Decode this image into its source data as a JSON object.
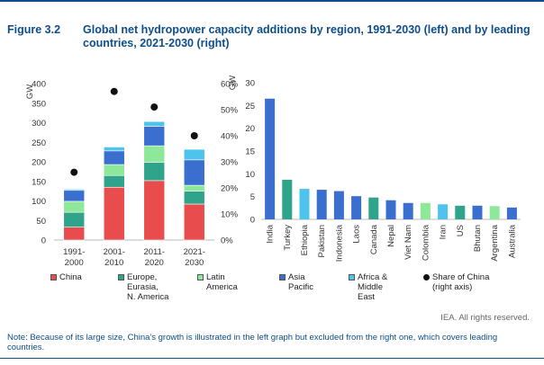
{
  "figure": {
    "number": "Figure 3.2",
    "title": "Global net hydropower capacity additions by region, 1991-2030 (left) and by leading countries, 2021-2030 (right)"
  },
  "colors": {
    "China": "#e84c4c",
    "Europe, Eurasia, N. America": "#2fa48a",
    "Latin America": "#8ee89a",
    "Asia Pacific": "#3a6fd0",
    "Africa & Middle East": "#4ec3ee",
    "Share of China": "#111111",
    "axis": "#bbbbbb",
    "title": "#0e4e8a"
  },
  "chart_data": [
    {
      "type": "bar",
      "stacked": true,
      "categories": [
        "1991-2000",
        "2001-2010",
        "2011-2020",
        "2021-2030"
      ],
      "category_lines": [
        [
          "1991-",
          "2000"
        ],
        [
          "2001-",
          "2010"
        ],
        [
          "2011-",
          "2020"
        ],
        [
          "2021-",
          "2030"
        ]
      ],
      "series": [
        {
          "name": "China",
          "values": [
            33,
            135,
            152,
            92
          ]
        },
        {
          "name": "Europe, Eurasia, N. America",
          "values": [
            38,
            30,
            47,
            33
          ]
        },
        {
          "name": "Latin America",
          "values": [
            28,
            28,
            42,
            15
          ]
        },
        {
          "name": "Asia Pacific",
          "values": [
            28,
            35,
            50,
            65
          ]
        },
        {
          "name": "Africa & Middle East",
          "values": [
            3,
            10,
            12,
            27
          ]
        }
      ],
      "secondary_series": {
        "name": "Share of China (right axis)",
        "values": [
          26,
          57,
          51,
          40
        ]
      },
      "ylabel": "GW",
      "ylim": [
        0,
        400
      ],
      "yticks": [
        0,
        50,
        100,
        150,
        200,
        250,
        300,
        350,
        400
      ],
      "y2lim": [
        0,
        60
      ],
      "y2ticks": [
        "0%",
        "10%",
        "20%",
        "30%",
        "40%",
        "50%",
        "60%"
      ],
      "grid": false
    },
    {
      "type": "bar",
      "categories": [
        "India",
        "Turkey",
        "Ethiopia",
        "Pakistan",
        "Indonesia",
        "Laos",
        "Canada",
        "Nepal",
        "Viet Nam",
        "Colombia",
        "Iran",
        "US",
        "Bhutan",
        "Argentina",
        "Australia"
      ],
      "values": [
        26.5,
        8.7,
        6.7,
        6.5,
        6.2,
        5.1,
        4.8,
        4.2,
        3.6,
        3.6,
        3.3,
        3.0,
        3.0,
        2.9,
        2.6
      ],
      "regions": [
        "Asia Pacific",
        "Europe, Eurasia, N. America",
        "Africa & Middle East",
        "Asia Pacific",
        "Asia Pacific",
        "Asia Pacific",
        "Europe, Eurasia, N. America",
        "Asia Pacific",
        "Asia Pacific",
        "Latin America",
        "Africa & Middle East",
        "Europe, Eurasia, N. America",
        "Asia Pacific",
        "Latin America",
        "Asia Pacific"
      ],
      "ylabel": "GW",
      "ylim": [
        0,
        30
      ],
      "yticks": [
        0,
        5,
        10,
        15,
        20,
        25,
        30
      ],
      "grid": false
    }
  ],
  "legend": [
    {
      "label": "China",
      "kind": "box"
    },
    {
      "label": "Europe,\nEurasia,\nN. America",
      "kind": "box"
    },
    {
      "label": "Latin\nAmerica",
      "kind": "box"
    },
    {
      "label": "Asia\nPacific",
      "kind": "box"
    },
    {
      "label": "Africa &\nMiddle\nEast",
      "kind": "box"
    },
    {
      "label": "Share of China\n(right axis)",
      "kind": "dot"
    }
  ],
  "rights": "IEA. All rights reserved.",
  "note": "Note: Because of its large size, China's growth is illustrated in the left graph but excluded from the right one, which covers leading countries."
}
